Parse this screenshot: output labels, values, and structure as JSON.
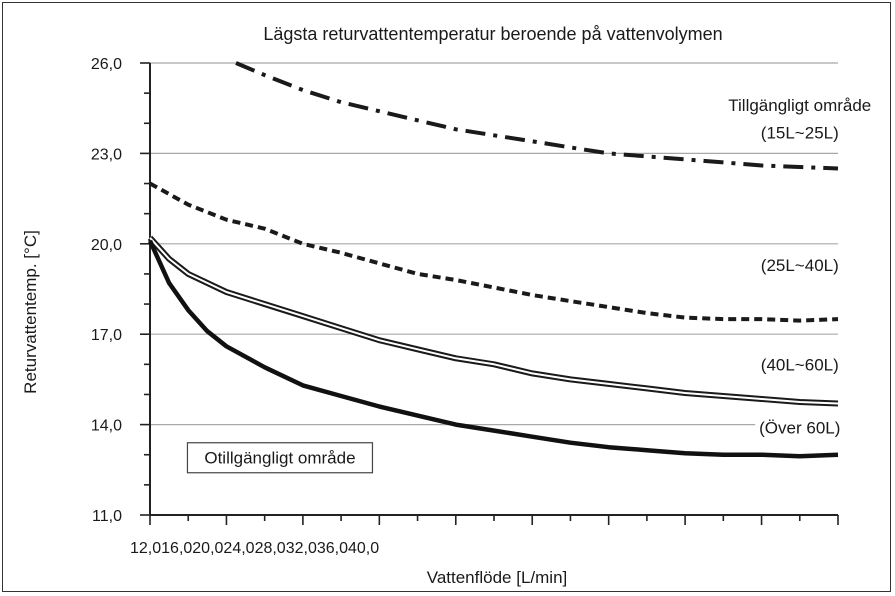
{
  "chart_data": {
    "type": "line",
    "title": "Lägsta returvattentemperatur beroende på vattenvolymen",
    "xlabel": "Vattenflöde [L/min]",
    "ylabel": "Returvattentemp. [°C]",
    "x_tick_text": "12,016,020,024,028,032,036,040,0",
    "xlim": [
      12,
      48
    ],
    "ylim": [
      11,
      26
    ],
    "y_ticks": [
      {
        "value": 11,
        "label": "11,0"
      },
      {
        "value": 14,
        "label": "14,0"
      },
      {
        "value": 17,
        "label": "17,0"
      },
      {
        "value": 20,
        "label": "20,0"
      },
      {
        "value": 23,
        "label": "23,0"
      },
      {
        "value": 26,
        "label": "26,0"
      }
    ],
    "grid": "horizontal at labeled y ticks",
    "series": [
      {
        "style": "dash-dot",
        "x": [
          16.5,
          18,
          20,
          22,
          24,
          26,
          28,
          30,
          32,
          34,
          36,
          38,
          40,
          42,
          44,
          46,
          48
        ],
        "y": [
          26.0,
          25.6,
          25.1,
          24.7,
          24.4,
          24.1,
          23.8,
          23.6,
          23.4,
          23.2,
          23.0,
          22.9,
          22.8,
          22.7,
          22.6,
          22.55,
          22.5
        ]
      },
      {
        "style": "dashed",
        "x": [
          12,
          14,
          16,
          18,
          20,
          22,
          24,
          26,
          28,
          30,
          32,
          34,
          36,
          38,
          40,
          42,
          44,
          46,
          48
        ],
        "y": [
          22.0,
          21.3,
          20.8,
          20.5,
          20.0,
          19.7,
          19.35,
          19.0,
          18.8,
          18.55,
          18.3,
          18.1,
          17.9,
          17.7,
          17.55,
          17.5,
          17.5,
          17.45,
          17.5
        ]
      },
      {
        "style": "double-solid",
        "x": [
          12,
          13,
          14,
          16,
          18,
          20,
          22,
          24,
          26,
          28,
          30,
          32,
          34,
          36,
          38,
          40,
          42,
          44,
          46,
          48
        ],
        "y": [
          20.2,
          19.5,
          19.0,
          18.4,
          18.0,
          17.6,
          17.2,
          16.8,
          16.5,
          16.2,
          16.0,
          15.7,
          15.5,
          15.35,
          15.2,
          15.05,
          14.95,
          14.85,
          14.75,
          14.7
        ]
      },
      {
        "style": "thick-solid",
        "x": [
          12,
          13,
          14,
          15,
          16,
          18,
          20,
          22,
          24,
          26,
          28,
          30,
          32,
          34,
          36,
          38,
          40,
          42,
          44,
          46,
          48
        ],
        "y": [
          20.1,
          18.7,
          17.8,
          17.1,
          16.6,
          15.9,
          15.3,
          14.95,
          14.6,
          14.3,
          14.0,
          13.8,
          13.6,
          13.4,
          13.25,
          13.15,
          13.05,
          13.0,
          13.0,
          12.95,
          13.0
        ]
      }
    ],
    "annotations": [
      {
        "text": "Tillgängligt område",
        "x": 46,
        "y": 24.6
      },
      {
        "text": "(15L~25L)",
        "x": 46,
        "y": 23.7
      },
      {
        "text": "(25L~40L)",
        "x": 46,
        "y": 19.3
      },
      {
        "text": "(40L~60L)",
        "x": 46,
        "y": 16.0
      },
      {
        "text": "(Över 60L)",
        "x": 46,
        "y": 13.9
      },
      {
        "text": "Otillgängligt område",
        "x": 18.8,
        "y": 12.9,
        "boxed": true
      }
    ]
  }
}
